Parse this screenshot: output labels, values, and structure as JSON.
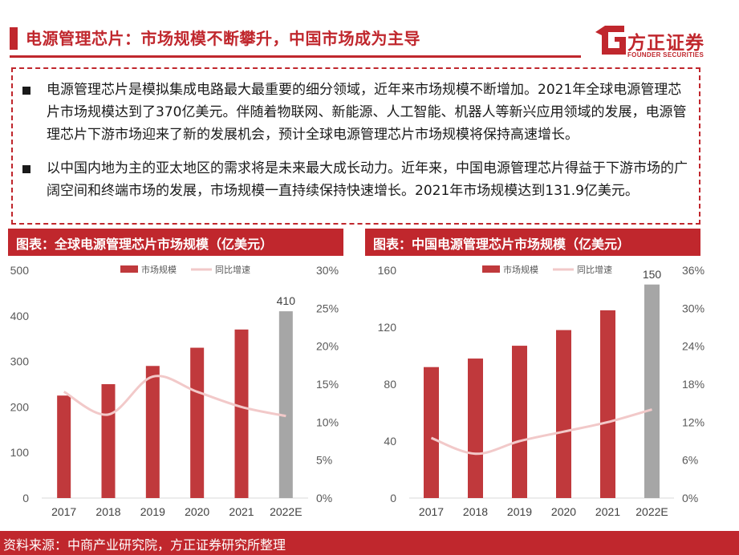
{
  "header": {
    "title": "电源管理芯片：市场规模不断攀升，中国市场成为主导",
    "logo_cn": "方正证券",
    "logo_en": "FOUNDER SECURITIES",
    "brand_color": "#c0272d"
  },
  "bullets": [
    "电源管理芯片是模拟集成电路最大最重要的细分领域，近年来市场规模不断增加。2021年全球电源管理芯片市场规模达到了370亿美元。伴随着物联网、新能源、人工智能、机器人等新兴应用领域的发展，电源管理芯片下游市场迎来了新的发展机会，预计全球电源管理芯片市场规模将保持高速增长。",
    "以中国内地为主的亚太地区的需求将是未来最大成长动力。近年来，中国电源管理芯片得益于下游市场的广阔空间和终端市场的发展，市场规模一直持续保持快速增长。2021年市场规模达到131.9亿美元。"
  ],
  "charts": {
    "left_title": "图表：全球电源管理芯片市场规模（亿美元）",
    "right_title": "图表：中国电源管理芯片市场规模（亿美元）"
  },
  "chart_data": [
    {
      "type": "bar",
      "categories": [
        "2017",
        "2018",
        "2019",
        "2020",
        "2021",
        "2022E"
      ],
      "series": [
        {
          "name": "市场规模",
          "values": [
            225,
            250,
            290,
            330,
            370,
            410
          ],
          "color": "#c0393c",
          "forecast_color": "#a6a6a6"
        },
        {
          "name": "同比增速",
          "type": "line",
          "axis": "right",
          "values": [
            14.0,
            11.0,
            16.0,
            14.0,
            12.0,
            10.8
          ],
          "color": "#f2c9c9"
        }
      ],
      "data_labels": [
        {
          "category": "2022E",
          "value": "410"
        }
      ],
      "ylim": [
        0,
        500
      ],
      "yticks": [
        "0",
        "100",
        "200",
        "300",
        "400",
        "500"
      ],
      "y2lim": [
        0,
        30
      ],
      "y2ticks": [
        "0%",
        "5%",
        "10%",
        "15%",
        "20%",
        "25%",
        "30%"
      ],
      "legend": "top-center"
    },
    {
      "type": "bar",
      "categories": [
        "2017",
        "2018",
        "2019",
        "2020",
        "2021",
        "2022E"
      ],
      "series": [
        {
          "name": "市场规模",
          "values": [
            92,
            98,
            107,
            118,
            131.9,
            150
          ],
          "color": "#c0393c",
          "forecast_color": "#a6a6a6"
        },
        {
          "name": "同比增速",
          "type": "line",
          "axis": "right",
          "values": [
            9.5,
            7.0,
            9.0,
            10.5,
            12.0,
            14.0
          ],
          "color": "#f2c9c9"
        }
      ],
      "data_labels": [
        {
          "category": "2022E",
          "value": "150"
        }
      ],
      "ylim": [
        0,
        160
      ],
      "yticks": [
        "0",
        "40",
        "80",
        "120",
        "160"
      ],
      "y2lim": [
        0,
        36
      ],
      "y2ticks": [
        "0%",
        "6%",
        "12%",
        "18%",
        "24%",
        "30%",
        "36%"
      ],
      "legend": "top-center"
    }
  ],
  "footer": {
    "source": "资料来源：中商产业研究院，方正证券研究所整理"
  }
}
